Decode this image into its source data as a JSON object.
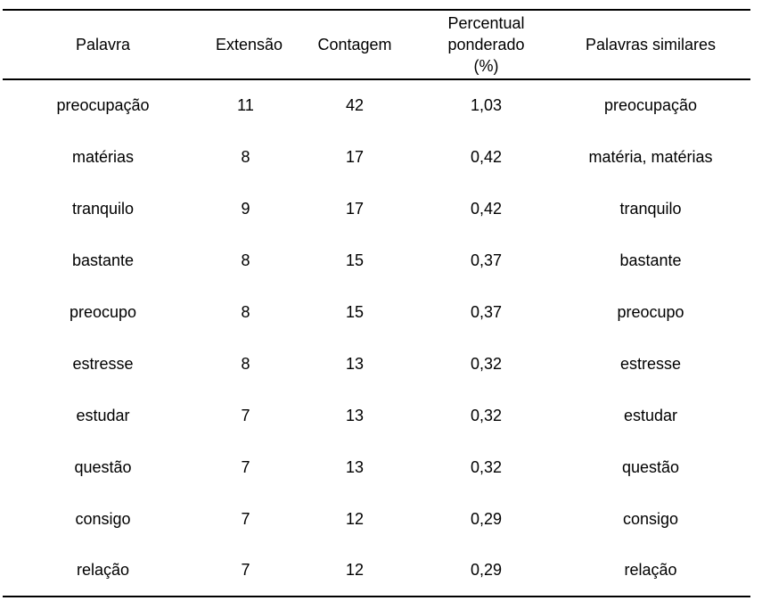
{
  "page": {
    "background_color": "#ffffff",
    "text_color": "#000000",
    "rule_color": "#000000"
  },
  "table": {
    "columns": [
      "Palavra",
      "Extensão",
      "Contagem",
      "Percentual ponderado (%)",
      "Palavras similares"
    ],
    "rows": [
      [
        "preocupação",
        "11",
        "42",
        "1,03",
        "preocupação"
      ],
      [
        "matérias",
        "8",
        "17",
        "0,42",
        "matéria, matérias"
      ],
      [
        "tranquilo",
        "9",
        "17",
        "0,42",
        "tranquilo"
      ],
      [
        "bastante",
        "8",
        "15",
        "0,37",
        "bastante"
      ],
      [
        "preocupo",
        "8",
        "15",
        "0,37",
        "preocupo"
      ],
      [
        "estresse",
        "8",
        "13",
        "0,32",
        "estresse"
      ],
      [
        "estudar",
        "7",
        "13",
        "0,32",
        "estudar"
      ],
      [
        "questão",
        "7",
        "13",
        "0,32",
        "questão"
      ],
      [
        "consigo",
        "7",
        "12",
        "0,29",
        "consigo"
      ],
      [
        "relação",
        "7",
        "12",
        "0,29",
        "relação"
      ]
    ]
  }
}
